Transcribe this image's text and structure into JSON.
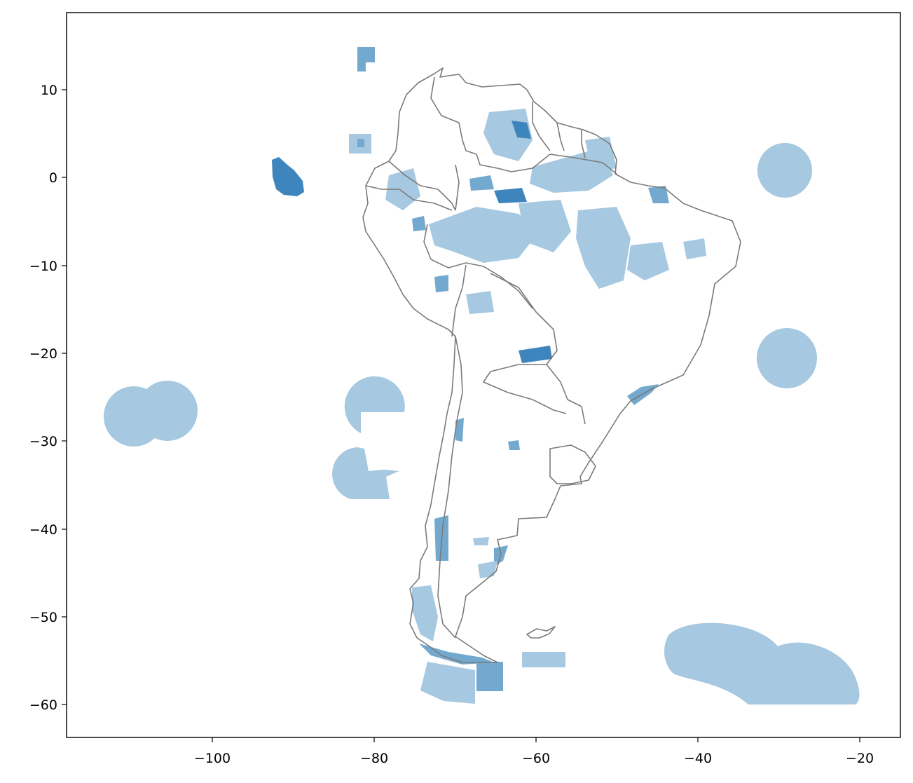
{
  "chart_data": {
    "type": "map",
    "title": "",
    "xlabel": "",
    "ylabel": "",
    "xlim": [
      -119,
      -15
    ],
    "ylim": [
      -64,
      18.5
    ],
    "x_ticks": [
      -100,
      -80,
      -60,
      -40,
      -20
    ],
    "y_ticks": [
      10,
      0,
      -10,
      -20,
      -30,
      -40,
      -50,
      -60
    ],
    "x_tick_labels": [
      "−100",
      "−80",
      "−60",
      "−40",
      "−20"
    ],
    "y_tick_labels": [
      "10",
      "0",
      "−10",
      "−20",
      "−30",
      "−40",
      "−50",
      "−60"
    ],
    "grid": false,
    "colors": {
      "protected_area_light": "#a6c8e0",
      "protected_area_mid": "#74a9cf",
      "protected_area_dark": "#3f85bd",
      "country_border": "#7a7a7a"
    },
    "layers": [
      "country borders",
      "protected areas (semi-transparent fill)"
    ]
  }
}
